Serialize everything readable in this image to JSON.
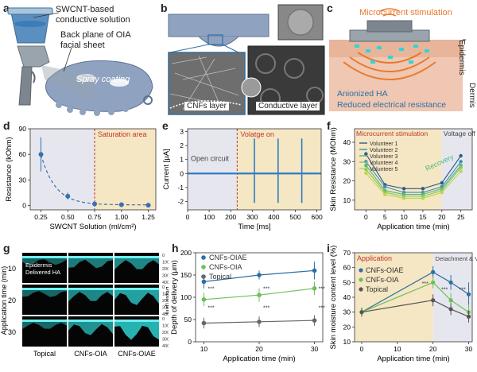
{
  "panel_labels": {
    "a": "a",
    "b": "b",
    "c": "c",
    "d": "d",
    "e": "e",
    "f": "f",
    "g": "g",
    "h": "h",
    "i": "i"
  },
  "panel_a": {
    "solution_label": "SWCNT-based conductive solution",
    "backplane_label": "Back plane of OIA facial sheet",
    "spray_label": "Spray coating",
    "colors": {
      "sheet": "#8fa3c0",
      "bottle": "#5b8fbf",
      "gun": "#9aa4ad"
    }
  },
  "panel_b": {
    "cnf_label": "CNFs layer",
    "conductive_label": "Conductive layer"
  },
  "panel_c": {
    "stimulation_label": "Microcurrent stimulation",
    "epidermis_label": "Epidermis",
    "dermis_label": "Dermis",
    "anionized_label": "Anionized HA",
    "reduced_label": "Reduced electrical resistance",
    "colors": {
      "skin": "#e8b49a",
      "wave": "#e87a2e",
      "cyan": "#2fd6d6"
    }
  },
  "chart_data": [
    {
      "id": "d",
      "type": "scatter",
      "xlabel": "SWCNT Solution (ml/cm²)",
      "ylabel": "Resistance (kOhm)",
      "xlim": [
        0.15,
        1.32
      ],
      "ylim": [
        -5,
        90
      ],
      "xticks": [
        "0.25",
        "0.50",
        "0.75",
        "1.00",
        "1.25"
      ],
      "xtick_values": [
        0.25,
        0.5,
        0.75,
        1.0,
        1.25
      ],
      "yticks": [
        "0",
        "30",
        "60",
        "90"
      ],
      "ytick_values": [
        0,
        30,
        60,
        90
      ],
      "annotation": "Saturation area",
      "saturation_from": 0.75,
      "x": [
        0.25,
        0.5,
        0.75,
        1.0,
        1.25
      ],
      "y": [
        60,
        11,
        2,
        1,
        0.5
      ],
      "err": [
        20,
        4,
        1,
        0.5,
        0.5
      ]
    },
    {
      "id": "e",
      "type": "line",
      "xlabel": "Time [ms]",
      "ylabel": "Current [µA]",
      "xlim": [
        0,
        620
      ],
      "ylim": [
        -2.6,
        3.2
      ],
      "xticks": [
        "0",
        "100",
        "200",
        "300",
        "400",
        "500",
        "600"
      ],
      "xtick_values": [
        0,
        100,
        200,
        300,
        400,
        500,
        600
      ],
      "yticks": [
        "-2",
        "-1",
        "0",
        "1",
        "2",
        "3"
      ],
      "ytick_values": [
        -2,
        -1,
        0,
        1,
        2,
        3
      ],
      "open_label": "Open circuit",
      "voltage_label": "Volatge on",
      "voltage_on_at": 230,
      "baseline": 0,
      "spike_times": [
        310,
        420,
        530
      ],
      "spike_top": 2.5,
      "spike_bottom": -2.1
    },
    {
      "id": "f",
      "type": "line",
      "xlabel": "Application time (min)",
      "ylabel": "Skin Resistance (MOhm)",
      "xlim": [
        -3,
        28
      ],
      "ylim": [
        5,
        47
      ],
      "xticks": [
        "0",
        "5",
        "10",
        "15",
        "20",
        "25"
      ],
      "xtick_values": [
        0,
        5,
        10,
        15,
        20,
        25
      ],
      "yticks": [
        "10",
        "20",
        "30",
        "40"
      ],
      "ytick_values": [
        10,
        20,
        30,
        40
      ],
      "stim_label": "Microcurrent stimulation",
      "off_label": "Voltage off",
      "recovery_label": "Recovery",
      "stim_until": 20,
      "x": [
        0,
        5,
        10,
        15,
        20,
        25
      ],
      "series": [
        {
          "name": "Volunteer 1",
          "color": "#2e5a88",
          "values": [
            34,
            18,
            16,
            16,
            19,
            33
          ]
        },
        {
          "name": "Volunteer 2",
          "color": "#3f8fb0",
          "values": [
            30,
            17,
            14,
            14,
            17,
            30
          ]
        },
        {
          "name": "Volunteer 3",
          "color": "#4fb87f",
          "values": [
            28,
            15,
            13,
            13,
            16,
            28
          ]
        },
        {
          "name": "Volunteer 4",
          "color": "#8ac45a",
          "values": [
            26,
            14,
            12,
            12,
            15,
            27
          ]
        },
        {
          "name": "Volunteer 5",
          "color": "#b8d84a",
          "values": [
            24,
            13,
            11,
            11,
            14,
            25
          ]
        }
      ]
    },
    {
      "id": "h",
      "type": "line",
      "xlabel": "Application time (min)",
      "ylabel": "Depth of delivery (µm)",
      "xlim": [
        8.5,
        31.5
      ],
      "ylim": [
        0,
        200
      ],
      "xticks": [
        "10",
        "20",
        "30"
      ],
      "xtick_values": [
        10,
        20,
        30
      ],
      "yticks": [
        "0",
        "50",
        "100",
        "150",
        "200"
      ],
      "ytick_values": [
        0,
        50,
        100,
        150,
        200
      ],
      "x": [
        10,
        20,
        30
      ],
      "sig": "***",
      "series": [
        {
          "name": "CNFs-OIAE",
          "color": "#2e6fa3",
          "values": [
            135,
            150,
            160
          ],
          "err": [
            15,
            10,
            20
          ]
        },
        {
          "name": "CNFs-OIA",
          "color": "#6cbf5b",
          "values": [
            95,
            105,
            120
          ],
          "err": [
            15,
            15,
            15
          ]
        },
        {
          "name": "Topical",
          "color": "#666666",
          "values": [
            42,
            45,
            48
          ],
          "err": [
            12,
            12,
            12
          ]
        }
      ]
    },
    {
      "id": "i",
      "type": "line",
      "xlabel": "Application time (min)",
      "ylabel": "Skin moisture content level (%)",
      "xlim": [
        -2,
        31
      ],
      "ylim": [
        10,
        70
      ],
      "xticks": [
        "0",
        "10",
        "20",
        "30"
      ],
      "xtick_values": [
        0,
        10,
        20,
        30
      ],
      "yticks": [
        "10",
        "20",
        "30",
        "40",
        "50",
        "60",
        "70"
      ],
      "ytick_values": [
        10,
        20,
        30,
        40,
        50,
        60,
        70
      ],
      "application_label": "Application",
      "detach_label": "Detachment & Voltage off",
      "application_until": 20,
      "sig": "***",
      "x": [
        0,
        20,
        25,
        30
      ],
      "series": [
        {
          "name": "CNFs-OIAE",
          "color": "#2e6fa3",
          "values": [
            30,
            57,
            50,
            42
          ],
          "err": [
            3,
            4,
            5,
            8
          ]
        },
        {
          "name": "CNFs-OIA",
          "color": "#6cbf5b",
          "values": [
            30,
            50,
            38,
            30
          ],
          "err": [
            3,
            4,
            5,
            5
          ]
        },
        {
          "name": "Topical",
          "color": "#555555",
          "values": [
            30,
            38,
            32,
            27
          ],
          "err": [
            3,
            4,
            4,
            4
          ]
        }
      ]
    }
  ],
  "panel_g": {
    "ylabel": "Application time (min)",
    "ylabel_right": "Depth (µm)",
    "rows": [
      "10",
      "20",
      "30"
    ],
    "cols": [
      "Topical",
      "CNFs-OIA",
      "CNFs-OIAE"
    ],
    "depth_ticks": [
      "0",
      "100",
      "200",
      "300",
      "400"
    ],
    "epidermis_label": "Epidermis",
    "delivered_label": "Delivered HA",
    "glow": [
      [
        0.15,
        0.35,
        0.45
      ],
      [
        0.18,
        0.45,
        0.65
      ],
      [
        0.2,
        0.55,
        0.8
      ]
    ]
  }
}
